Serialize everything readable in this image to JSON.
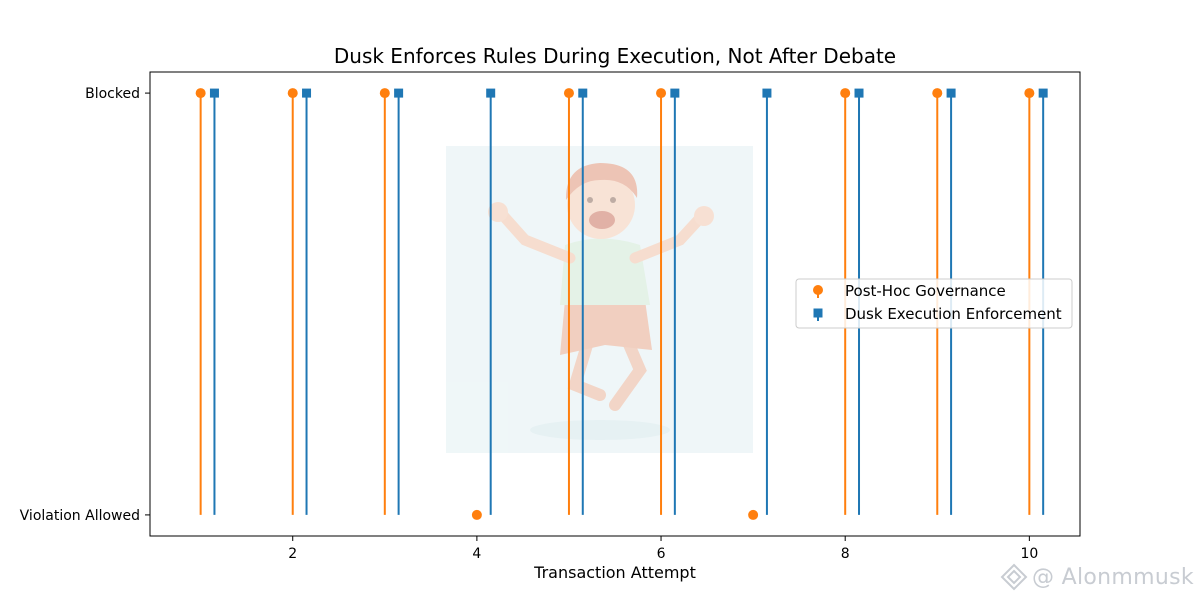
{
  "chart_data": {
    "type": "stem",
    "title": "Dusk Enforces Rules During Execution, Not After Debate",
    "xlabel": "Transaction Attempt",
    "ylabel": "",
    "xlim": [
      0.45,
      10.55
    ],
    "ylim": [
      -0.05,
      1.05
    ],
    "x_ticks": [
      2,
      4,
      6,
      8,
      10
    ],
    "x_tick_labels": [
      "2",
      "4",
      "6",
      "8",
      "10"
    ],
    "y_ticks": [
      0,
      1
    ],
    "y_tick_labels": [
      "Violation Allowed",
      "Blocked"
    ],
    "series": [
      {
        "name": "Post-Hoc Governance",
        "color": "#ff7f0e",
        "marker": "circle",
        "x": [
          1,
          2,
          3,
          4,
          5,
          6,
          7,
          8,
          9,
          10
        ],
        "y": [
          1,
          1,
          1,
          0,
          1,
          1,
          0,
          1,
          1,
          1
        ]
      },
      {
        "name": "Dusk Execution Enforcement",
        "color": "#1f77b4",
        "marker": "square",
        "x": [
          1.15,
          2.15,
          3.15,
          4.15,
          5.15,
          6.15,
          7.15,
          8.15,
          9.15,
          10.15
        ],
        "y": [
          1,
          1,
          1,
          1,
          1,
          1,
          1,
          1,
          1,
          1
        ]
      }
    ],
    "legend_position": "center-right",
    "grid": false,
    "background_illustration": "cheerful-jumping-child-image"
  },
  "watermark": {
    "text": "@ Alonmmusk",
    "icon": "diamond-logo-icon"
  }
}
